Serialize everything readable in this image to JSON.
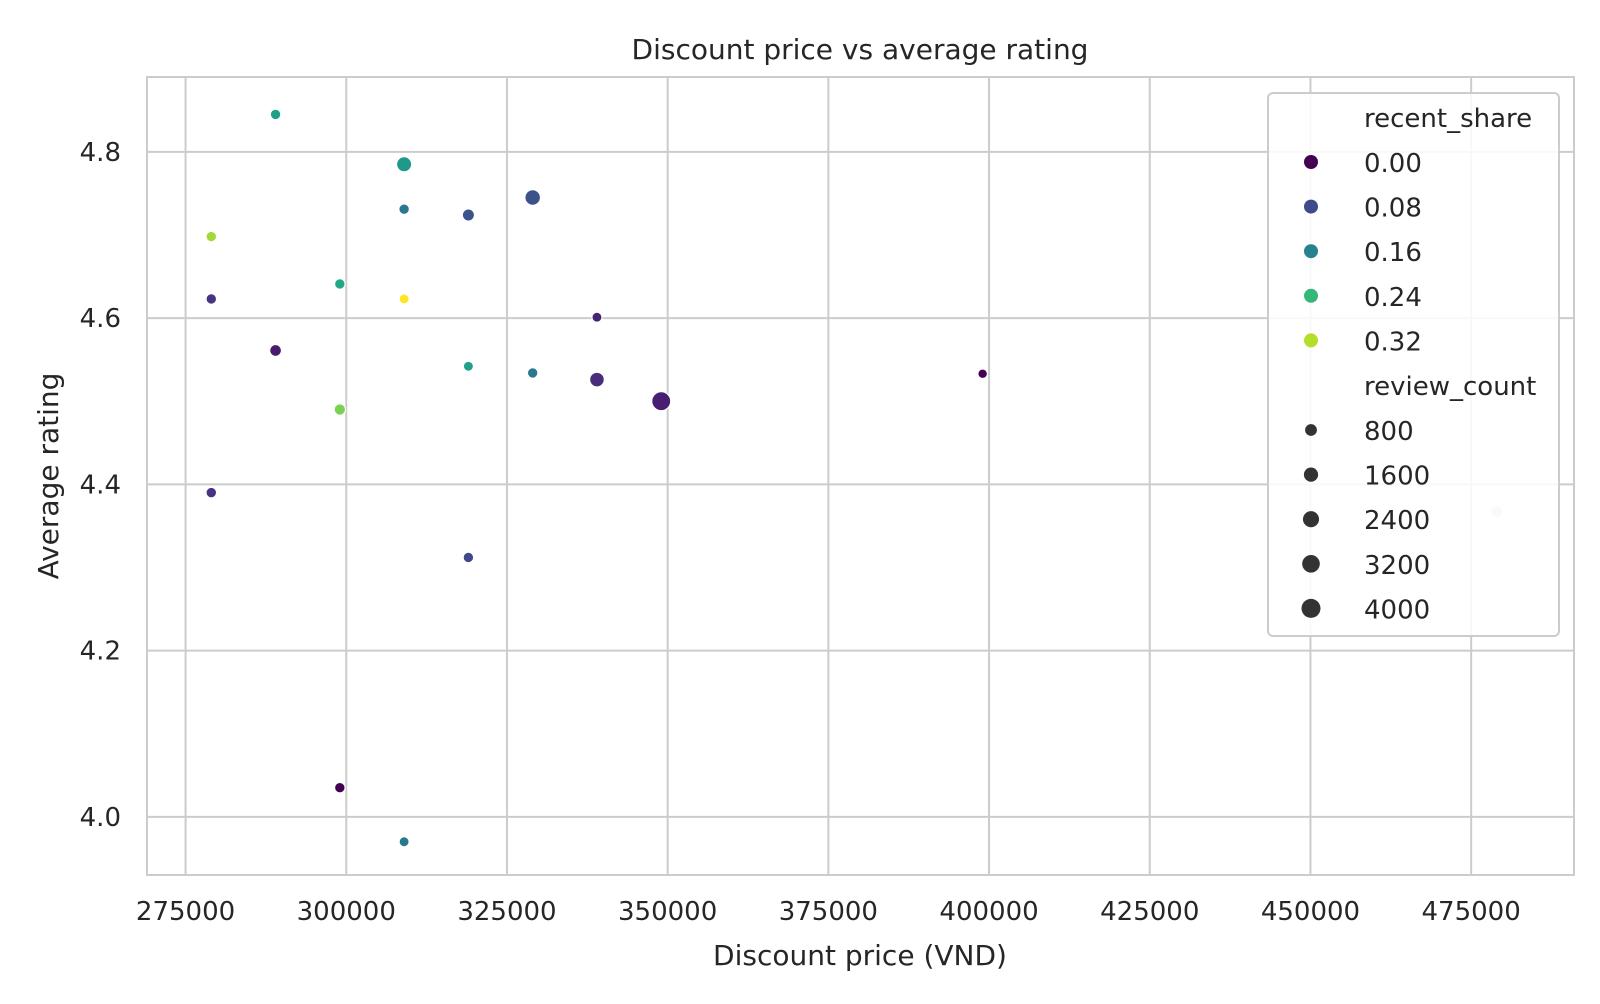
{
  "chart_data": {
    "type": "scatter",
    "title": "Discount price vs average rating",
    "xlabel": "Discount price (VND)",
    "ylabel": "Average rating",
    "xlim": [
      269000,
      491000
    ],
    "ylim": [
      3.93,
      4.89
    ],
    "xticks": [
      275000,
      300000,
      325000,
      350000,
      375000,
      400000,
      425000,
      450000,
      475000
    ],
    "yticks": [
      4.0,
      4.2,
      4.4,
      4.6,
      4.8
    ],
    "grid": true,
    "legend_position": "top-right",
    "legend": {
      "hue_title": "recent_share",
      "hue_entries": [
        {
          "label": "0.00",
          "color": "#440154"
        },
        {
          "label": "0.08",
          "color": "#3e4a89"
        },
        {
          "label": "0.16",
          "color": "#26828e"
        },
        {
          "label": "0.24",
          "color": "#35b779"
        },
        {
          "label": "0.32",
          "color": "#b5de2b"
        }
      ],
      "size_title": "review_count",
      "size_entries": [
        {
          "label": "800",
          "value": 800
        },
        {
          "label": "1600",
          "value": 1600
        },
        {
          "label": "2400",
          "value": 2400
        },
        {
          "label": "3200",
          "value": 3200
        },
        {
          "label": "4000",
          "value": 4000
        }
      ]
    },
    "points": [
      {
        "x": 289000,
        "y": 4.845,
        "recent_share": 0.2,
        "review_count": 500,
        "color": "#1fa088"
      },
      {
        "x": 309000,
        "y": 4.785,
        "recent_share": 0.2,
        "review_count": 2000,
        "color": "#1f9a8a"
      },
      {
        "x": 329000,
        "y": 4.745,
        "recent_share": 0.09,
        "review_count": 2200,
        "color": "#3b528b"
      },
      {
        "x": 309000,
        "y": 4.731,
        "recent_share": 0.16,
        "review_count": 500,
        "color": "#2a788e"
      },
      {
        "x": 319000,
        "y": 4.724,
        "recent_share": 0.09,
        "review_count": 900,
        "color": "#3b528b"
      },
      {
        "x": 279000,
        "y": 4.698,
        "recent_share": 0.3,
        "review_count": 500,
        "color": "#a0da39"
      },
      {
        "x": 299000,
        "y": 4.641,
        "recent_share": 0.2,
        "review_count": 500,
        "color": "#22a884"
      },
      {
        "x": 279000,
        "y": 4.623,
        "recent_share": 0.05,
        "review_count": 500,
        "color": "#463480"
      },
      {
        "x": 309000,
        "y": 4.623,
        "recent_share": 0.35,
        "review_count": 400,
        "color": "#fde725"
      },
      {
        "x": 339000,
        "y": 4.601,
        "recent_share": 0.03,
        "review_count": 400,
        "color": "#482374"
      },
      {
        "x": 289000,
        "y": 4.561,
        "recent_share": 0.02,
        "review_count": 800,
        "color": "#481b6d"
      },
      {
        "x": 319000,
        "y": 4.542,
        "recent_share": 0.2,
        "review_count": 400,
        "color": "#1fa088"
      },
      {
        "x": 329000,
        "y": 4.534,
        "recent_share": 0.16,
        "review_count": 500,
        "color": "#2a788e"
      },
      {
        "x": 399000,
        "y": 4.533,
        "recent_share": 0.0,
        "review_count": 300,
        "color": "#440154"
      },
      {
        "x": 339000,
        "y": 4.526,
        "recent_share": 0.05,
        "review_count": 1800,
        "color": "#472d7b"
      },
      {
        "x": 349000,
        "y": 4.5,
        "recent_share": 0.03,
        "review_count": 4000,
        "color": "#481f70"
      },
      {
        "x": 299000,
        "y": 4.49,
        "recent_share": 0.29,
        "review_count": 700,
        "color": "#7ad151"
      },
      {
        "x": 279000,
        "y": 4.39,
        "recent_share": 0.05,
        "review_count": 500,
        "color": "#463480"
      },
      {
        "x": 479000,
        "y": 4.367,
        "recent_share": 0.0,
        "review_count": 800,
        "color": "#d9d0e3"
      },
      {
        "x": 319000,
        "y": 4.312,
        "recent_share": 0.09,
        "review_count": 500,
        "color": "#3e4a89"
      },
      {
        "x": 299000,
        "y": 4.035,
        "recent_share": 0.0,
        "review_count": 500,
        "color": "#440154"
      },
      {
        "x": 309000,
        "y": 3.97,
        "recent_share": 0.16,
        "review_count": 400,
        "color": "#2a788e"
      }
    ]
  }
}
